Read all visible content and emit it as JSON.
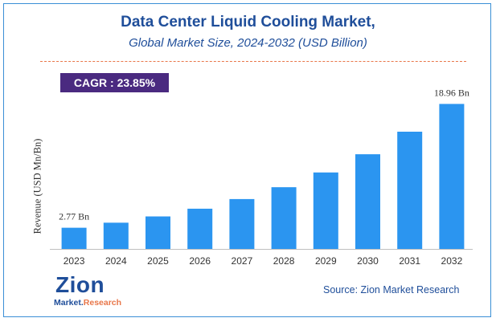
{
  "title": "Data Center Liquid Cooling Market,",
  "subtitle": "Global Market Size, 2024-2032 (USD Billion)",
  "cagr": "CAGR : 23.85%",
  "source": "Source: Zion Market Research",
  "logo": {
    "name": "Zion",
    "tagline_a": "Market.",
    "tagline_b": "Research"
  },
  "colors": {
    "bar": "#2b95f0",
    "title": "#1f4e9a",
    "cagr_bg": "#4a2a80",
    "divider": "#e8774a"
  },
  "chart_data": {
    "type": "bar",
    "categories": [
      "2023",
      "2024",
      "2025",
      "2026",
      "2027",
      "2028",
      "2029",
      "2030",
      "2031",
      "2032"
    ],
    "values": [
      2.77,
      3.43,
      4.25,
      5.26,
      6.52,
      8.07,
      10.0,
      12.38,
      15.33,
      18.96
    ],
    "data_labels": [
      {
        "index": 0,
        "text": "2.77 Bn"
      },
      {
        "index": 9,
        "text": "18.96 Bn"
      }
    ],
    "ylabel": "Revenue (USD Mn/Bn)",
    "xlabel": "",
    "ylim": [
      0,
      21
    ],
    "grid": false,
    "legend": "none"
  }
}
